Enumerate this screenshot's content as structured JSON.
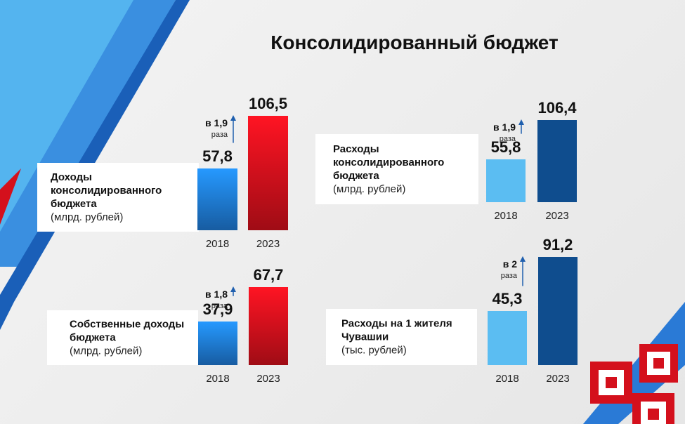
{
  "title": "Консолидированный бюджет",
  "chart_data": [
    {
      "type": "bar",
      "title": "Доходы консолидированного бюджета",
      "subtitle": "(млрд. рублей)",
      "categories": [
        "2018",
        "2023"
      ],
      "values": [
        57.8,
        106.5
      ],
      "value_labels": [
        "57,8",
        "106,5"
      ],
      "annotation": "в 1,9",
      "annotation_unit": "раза",
      "colors": [
        "#1e7ad6",
        "#d4101c"
      ],
      "gradient": true
    },
    {
      "type": "bar",
      "title": "Собственные доходы бюджета",
      "subtitle": "(млрд. рублей)",
      "categories": [
        "2018",
        "2023"
      ],
      "values": [
        37.9,
        67.7
      ],
      "value_labels": [
        "37,9",
        "67,7"
      ],
      "annotation": "в 1,8",
      "annotation_unit": "раза",
      "colors": [
        "#1e7ad6",
        "#d4101c"
      ],
      "gradient": true
    },
    {
      "type": "bar",
      "title": "Расходы консолидированного бюджета",
      "subtitle": "(млрд. рублей)",
      "categories": [
        "2018",
        "2023"
      ],
      "values": [
        55.8,
        106.4
      ],
      "value_labels": [
        "55,8",
        "106,4"
      ],
      "annotation": "в 1,9",
      "annotation_unit": "раза",
      "colors": [
        "#5bbdf2",
        "#0f4d8e"
      ],
      "gradient": false
    },
    {
      "type": "bar",
      "title": "Расходы на 1 жителя Чувашии",
      "subtitle": "(тыс. рублей)",
      "categories": [
        "2018",
        "2023"
      ],
      "values": [
        45.3,
        91.2
      ],
      "value_labels": [
        "45,3",
        "91,2"
      ],
      "annotation": "в 2",
      "annotation_unit": "раза",
      "colors": [
        "#5bbdf2",
        "#0f4d8e"
      ],
      "gradient": false
    }
  ]
}
